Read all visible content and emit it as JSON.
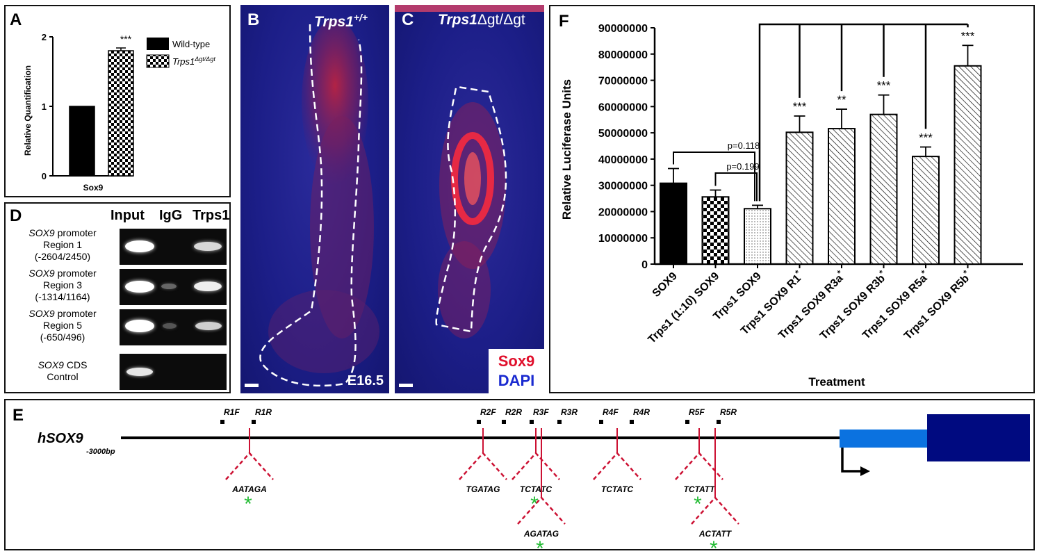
{
  "panels": {
    "A": "A",
    "B": "B",
    "C": "C",
    "D": "D",
    "E": "E",
    "F": "F"
  },
  "panelA": {
    "ylabel": "Relative Quantification",
    "xlabel": "Sox9",
    "yticks": [
      "0",
      "1",
      "2"
    ],
    "legend": [
      {
        "name": "Wild-type",
        "pattern": "solid"
      },
      {
        "name": "Trps1",
        "sup": "Δgt/Δgt",
        "pattern": "checker"
      }
    ],
    "sig": "***"
  },
  "panelB": {
    "title_gene": "Trps1",
    "title_sup": "+/+",
    "stage": "E16.5"
  },
  "panelC": {
    "title_gene": "Trps1",
    "title_rest": "Δgt/Δgt",
    "legend_red": "Sox9",
    "legend_blue": "DAPI"
  },
  "panelD": {
    "headers": [
      "Input",
      "IgG",
      "Trps1"
    ],
    "rows": [
      {
        "gene": "SOX9",
        "l1": " promoter",
        "l2": "Region 1",
        "l3": "(-2604/2450)"
      },
      {
        "gene": "SOX9",
        "l1": " promoter",
        "l2": "Region 3",
        "l3": "(-1314/1164)"
      },
      {
        "gene": "SOX9",
        "l1": " promoter",
        "l2": "Region 5",
        "l3": "(-650/496)"
      },
      {
        "gene": "SOX9",
        "l1": " CDS",
        "l2": "Control",
        "l3": ""
      }
    ]
  },
  "panelE": {
    "gene": "hSOX9",
    "start": "-3000bp",
    "primers": [
      "R1F",
      "R1R",
      "R2F",
      "R2R",
      "R3F",
      "R3R",
      "R4F",
      "R4R",
      "R5F",
      "R5R"
    ],
    "sites": [
      "AATAGA",
      "TGATAG",
      "TCTATC",
      "AGATAG",
      "TCTATC",
      "TCTATT",
      "ACTATT"
    ],
    "asterisk": "*"
  },
  "panelF": {
    "ylabel": "Relative Luciferase Units",
    "xlabel": "Treatment",
    "yticks": [
      "0",
      "10000000",
      "20000000",
      "30000000",
      "40000000",
      "50000000",
      "60000000",
      "70000000",
      "80000000",
      "90000000"
    ],
    "pvalues": [
      "p=0.118",
      "p=0.199"
    ]
  },
  "chart_data": [
    {
      "type": "bar",
      "categories": [
        "Sox9"
      ],
      "series": [
        {
          "name": "Wild-type",
          "values": [
            1.0
          ],
          "error": [
            0.0
          ]
        },
        {
          "name": "Trps1Δgt/Δgt",
          "values": [
            1.8
          ],
          "error": [
            0.04
          ]
        }
      ],
      "annotations": [
        "***"
      ],
      "ylabel": "Relative Quantification",
      "xlabel": "Sox9",
      "ylim": [
        0,
        2
      ],
      "legend": "top-right"
    },
    {
      "type": "bar",
      "categories": [
        "SOX9",
        "Trps1 (1:10) SOX9",
        "Trps1 SOX9",
        "Trps1 SOX9 R1*",
        "Trps1 SOX9 R3a*",
        "Trps1 SOX9 R3b*",
        "Trps1 SOX9 R5a*",
        "Trps1 SOX9 R5b*"
      ],
      "values": [
        30800000,
        25600000,
        21100000,
        50200000,
        51600000,
        57000000,
        41000000,
        75500000
      ],
      "errors": [
        5600000,
        2600000,
        1300000,
        6200000,
        7400000,
        7400000,
        3600000,
        7800000
      ],
      "significance": [
        "",
        "",
        "",
        "***",
        "**",
        "***",
        "***",
        "***"
      ],
      "annotations": [
        "p=0.118",
        "p=0.199"
      ],
      "ylabel": "Relative Luciferase Units",
      "xlabel": "Treatment",
      "ylim": [
        0,
        90000000
      ]
    }
  ],
  "colors": {
    "red": "#cc1133",
    "blue": "#0033cc",
    "lightblue": "#0b72e0",
    "navy": "#000a80",
    "green": "#22bb33"
  }
}
